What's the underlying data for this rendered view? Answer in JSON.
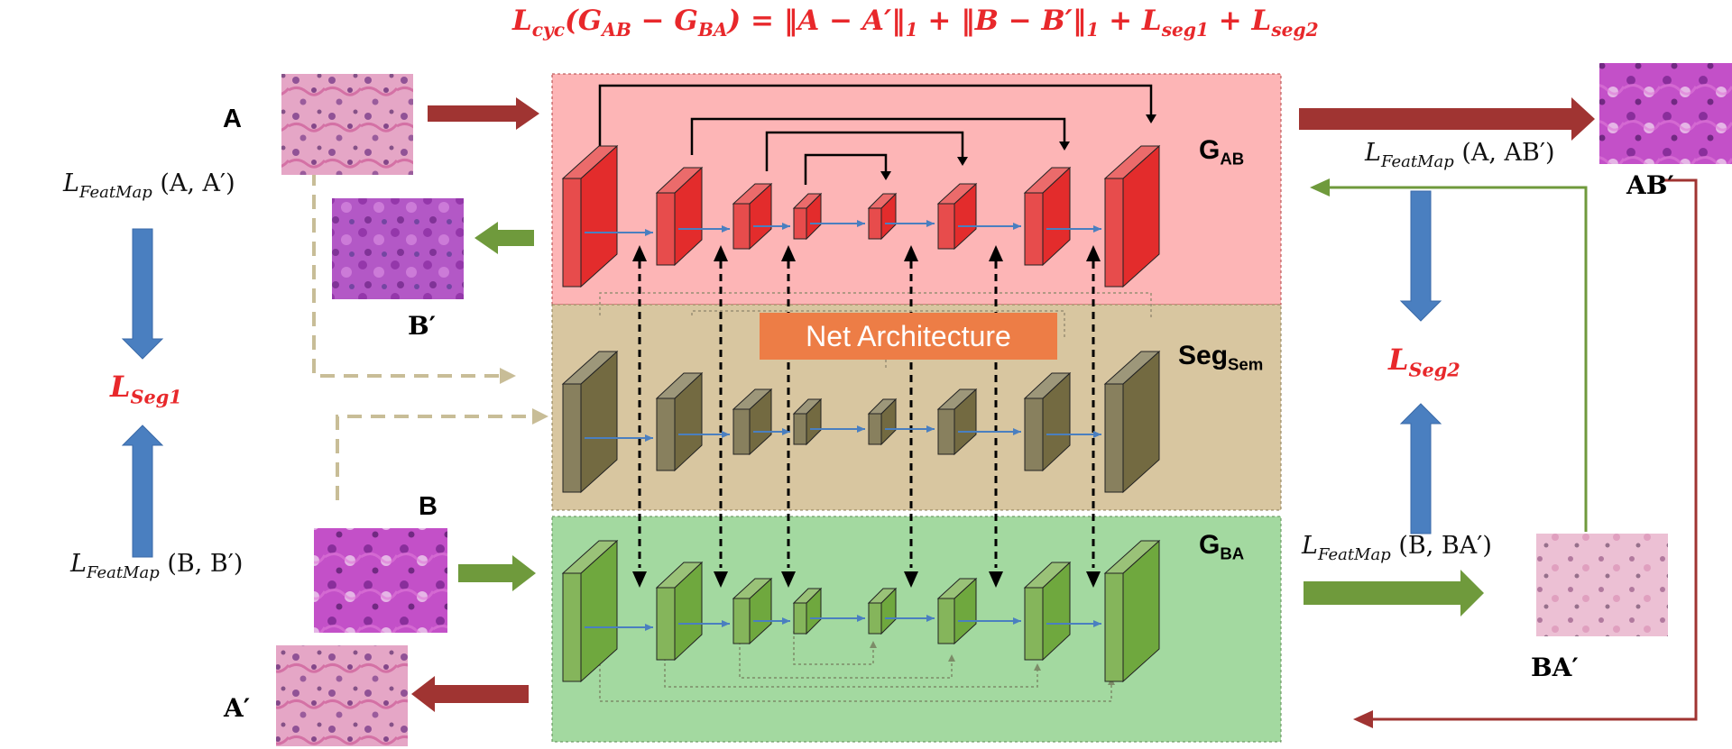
{
  "formula": {
    "parts": [
      "L",
      "cyc",
      "(G",
      "AB",
      " − G",
      "BA",
      ") = ‖A − A′‖",
      "1",
      " + ‖B − B′‖",
      "1",
      " + L",
      "seg1",
      " + L",
      "seg2"
    ]
  },
  "labels": {
    "A": "A",
    "B": "B",
    "B_prime": "B′",
    "A_prime": "A′",
    "AB_prime": "AB′",
    "BA_prime": "BA′",
    "G_AB_main": "G",
    "G_AB_sub": "AB",
    "G_BA_main": "G",
    "G_BA_sub": "BA",
    "Seg_main": "Seg",
    "Seg_sub": "Sem",
    "net_arch": "Net Architecture"
  },
  "losses": {
    "feat_AA": {
      "L": "L",
      "sub": "FeatMap",
      "args": " (A, A′)"
    },
    "feat_BB": {
      "L": "L",
      "sub": "FeatMap",
      "args": " (B, B′)"
    },
    "feat_AAB": {
      "L": "L",
      "sub": "FeatMap",
      "args": " (A, AB′)"
    },
    "feat_BBA": {
      "L": "L",
      "sub": "FeatMap",
      "args": " (B, BA′)"
    },
    "seg1": {
      "L": "L",
      "sub": "Seg1"
    },
    "seg2": {
      "L": "L",
      "sub": "Seg2"
    }
  },
  "colors": {
    "formula_red": "#e8282b",
    "panel_gab": "#fdb5b6",
    "panel_seg": "#d8c6a0",
    "panel_gba": "#a3d9a0",
    "block_red": "#e32c2c",
    "block_olive": "#736a41",
    "block_green": "#6fa83e",
    "arrow_dark_red": "#a03432",
    "arrow_green": "#6f9a3c",
    "arrow_blue": "#4a7fc0",
    "dashed_tan": "#c8bd97",
    "net_arch_orange": "#ed7d46"
  },
  "icons": [
    "tissue-image-thumbnail",
    "3d-block-icon",
    "arrow-icon"
  ]
}
